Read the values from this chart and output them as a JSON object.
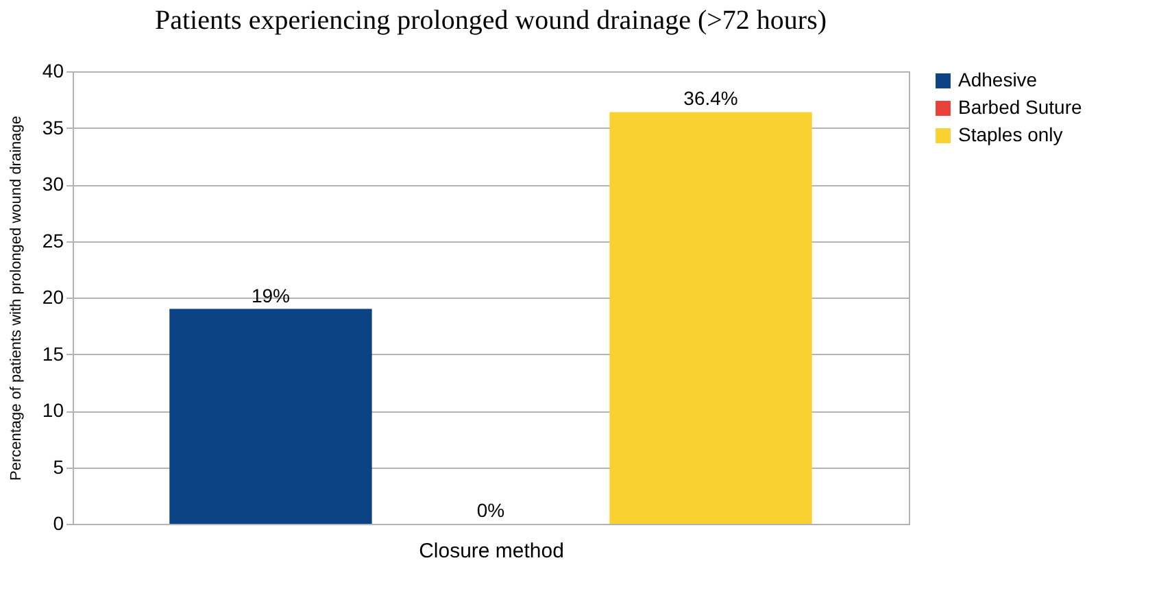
{
  "chart_data": {
    "type": "bar",
    "title": "Patients experiencing prolonged wound drainage (>72 hours)",
    "xlabel": "Closure method",
    "ylabel": "Percentage of patients with prolonged wound drainage",
    "categories": [
      null
    ],
    "series": [
      {
        "name": "Adhesive",
        "color": "#0b4384",
        "values": [
          19
        ],
        "value_labels": [
          "19%"
        ]
      },
      {
        "name": "Barbed Suture",
        "color": "#e8413a",
        "values": [
          0
        ],
        "value_labels": [
          "0%"
        ]
      },
      {
        "name": "Staples only",
        "color": "#f9d232",
        "values": [
          36.4
        ],
        "value_labels": [
          "36.4%"
        ]
      }
    ],
    "ylim": [
      0,
      40
    ],
    "yticks": [
      0,
      5,
      10,
      15,
      20,
      25,
      30,
      35,
      40
    ],
    "grid": "y",
    "legend": "right"
  }
}
